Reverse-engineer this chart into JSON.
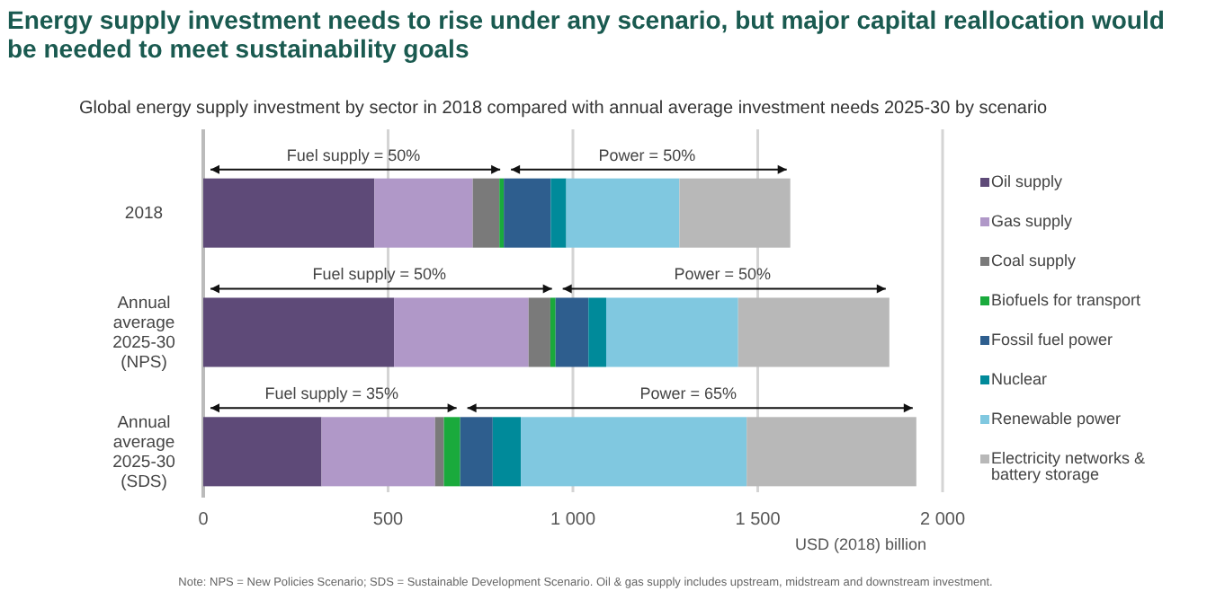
{
  "chart_data": {
    "type": "bar",
    "orientation": "horizontal",
    "stacked": true,
    "title": "Energy supply investment needs to rise under any scenario, but major capital reallocation would be needed to meet sustainability goals",
    "subtitle": "Global energy supply investment by sector in 2018 compared with annual average investment needs 2025-30 by scenario",
    "xlabel": "USD (2018) billion",
    "categories": [
      "2018",
      "Annual average 2025-30 (NPS)",
      "Annual average 2025-30 (SDS)"
    ],
    "xlim": [
      0,
      2000
    ],
    "xticks": [
      0,
      500,
      {
        "value": 1000,
        "label": "1 000"
      },
      {
        "value": 1500,
        "label": "1 500"
      },
      {
        "value": 2000,
        "label": "2 000"
      }
    ],
    "grid": "x",
    "legend": "right",
    "series": [
      {
        "name": "Oil supply",
        "color": "#5e4a78",
        "values": [
          463,
          516,
          320
        ]
      },
      {
        "name": "Gas supply",
        "color": "#b098c8",
        "values": [
          266,
          364,
          307
        ]
      },
      {
        "name": "Coal supply",
        "color": "#7a7a7a",
        "values": [
          72,
          59,
          24
        ]
      },
      {
        "name": "Biofuels for transport",
        "color": "#1aaa3c",
        "values": [
          12,
          14,
          44
        ]
      },
      {
        "name": "Fossil fuel power",
        "color": "#2e5e8e",
        "values": [
          127,
          89,
          88
        ]
      },
      {
        "name": "Nuclear",
        "color": "#008a9a",
        "values": [
          42,
          48,
          76
        ]
      },
      {
        "name": "Renewable power",
        "color": "#80c8e0",
        "values": [
          306,
          357,
          611
        ]
      },
      {
        "name": "Electricity networks & battery storage",
        "color": "#b8b8b8",
        "values": [
          300,
          409,
          459
        ]
      }
    ],
    "annotations": [
      "Fuel supply = 50%",
      "Power = 50%",
      "Fuel supply = 50%",
      "Power = 50%",
      "Fuel supply = 35%",
      "Power = 65%",
      "Note: NPS = New Policies Scenario; SDS = Sustainable Development Scenario. Oil & gas supply includes upstream, midstream and downstream investment."
    ]
  }
}
